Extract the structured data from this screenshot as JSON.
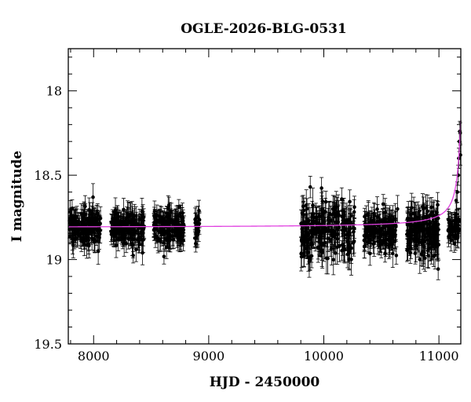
{
  "chart_data": {
    "type": "scatter",
    "title": "OGLE-2026-BLG-0531",
    "xlabel": "HJD - 2450000",
    "ylabel": "I magnitude",
    "xlim": [
      7780,
      11190
    ],
    "ylim": [
      17.75,
      19.5
    ],
    "y_inverted": true,
    "x_ticks": [
      8000,
      9000,
      10000,
      11000
    ],
    "x_tick_labels": [
      "8000",
      "9000",
      "10000",
      "11000"
    ],
    "y_ticks": [
      18,
      18.5,
      19,
      19.5
    ],
    "y_tick_labels": [
      "18",
      "18.5",
      "19",
      "19.5"
    ],
    "grid": false,
    "colors": {
      "data": "#000000",
      "model": "#e040e0"
    },
    "seasons": [
      {
        "start": 7790,
        "end": 8060,
        "baseline": 18.81,
        "scatter": 0.05,
        "err": 0.06,
        "n": 170
      },
      {
        "start": 8150,
        "end": 8440,
        "baseline": 18.81,
        "scatter": 0.05,
        "err": 0.06,
        "n": 170
      },
      {
        "start": 8520,
        "end": 8790,
        "baseline": 18.81,
        "scatter": 0.05,
        "err": 0.06,
        "n": 150
      },
      {
        "start": 8880,
        "end": 8920,
        "baseline": 18.81,
        "scatter": 0.05,
        "err": 0.06,
        "n": 20
      },
      {
        "start": 9800,
        "end": 10270,
        "baseline": 18.83,
        "scatter": 0.08,
        "err": 0.08,
        "n": 230
      },
      {
        "start": 10350,
        "end": 10630,
        "baseline": 18.82,
        "scatter": 0.06,
        "err": 0.07,
        "n": 150
      },
      {
        "start": 10720,
        "end": 11000,
        "baseline": 18.83,
        "scatter": 0.07,
        "err": 0.08,
        "n": 170
      },
      {
        "start": 11080,
        "end": 11175,
        "baseline": 18.81,
        "scatter": 0.05,
        "err": 0.06,
        "n": 50
      }
    ],
    "outliers": [
      {
        "x": 7995,
        "y": 18.63
      },
      {
        "x": 10080,
        "y": 18.7
      },
      {
        "x": 10110,
        "y": 18.73
      },
      {
        "x": 10640,
        "y": 18.7
      }
    ],
    "rise": [
      {
        "x": 11150,
        "y": 18.65
      },
      {
        "x": 11160,
        "y": 18.6
      },
      {
        "x": 11168,
        "y": 18.5
      },
      {
        "x": 11173,
        "y": 18.4
      },
      {
        "x": 11178,
        "y": 18.3
      },
      {
        "x": 11182,
        "y": 18.24
      },
      {
        "x": 11185,
        "y": 18.25
      },
      {
        "x": 11187,
        "y": 18.38
      }
    ],
    "model": {
      "baseline": 18.81,
      "peak_time": 11200,
      "peak_mag": 18.1,
      "width_days": 40
    }
  }
}
